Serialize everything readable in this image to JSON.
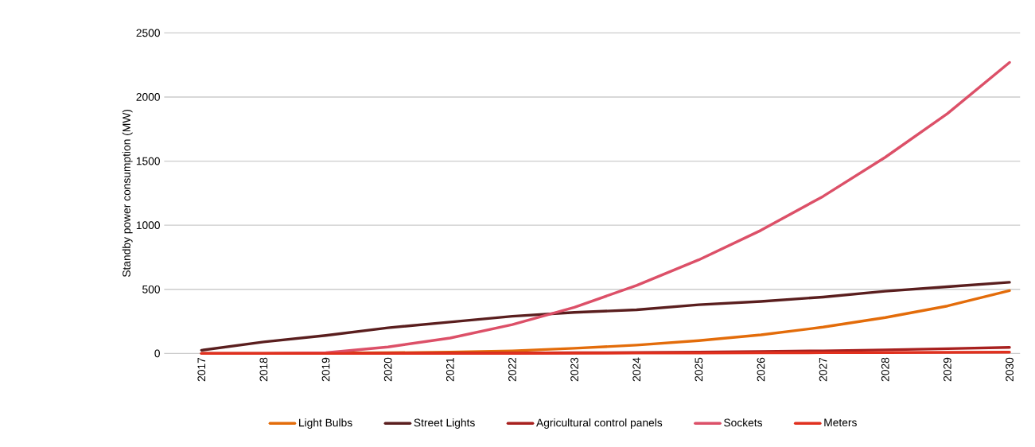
{
  "chart_data": {
    "type": "line",
    "ylabel": "Standby power consumption (MW)",
    "categories": [
      "2017",
      "2018",
      "2019",
      "2020",
      "2021",
      "2022",
      "2023",
      "2024",
      "2025",
      "2026",
      "2027",
      "2028",
      "2029",
      "2030"
    ],
    "series": [
      {
        "name": "Light Bulbs",
        "color": "#e36c0a",
        "values": [
          0,
          0,
          2,
          5,
          10,
          20,
          40,
          65,
          100,
          145,
          205,
          280,
          370,
          490
        ]
      },
      {
        "name": "Street Lights",
        "color": "#5a1e1e",
        "values": [
          25,
          90,
          140,
          200,
          245,
          290,
          320,
          340,
          380,
          405,
          440,
          485,
          520,
          555
        ]
      },
      {
        "name": "Agricultural control panels",
        "color": "#a8201e",
        "values": [
          0,
          0,
          0,
          1,
          2,
          3,
          5,
          7,
          10,
          15,
          20,
          28,
          37,
          47
        ]
      },
      {
        "name": "Sockets",
        "color": "#dc5068",
        "values": [
          0,
          0,
          5,
          50,
          120,
          225,
          360,
          530,
          730,
          960,
          1225,
          1530,
          1870,
          2270
        ]
      },
      {
        "name": "Meters",
        "color": "#e0301e",
        "values": [
          0,
          0,
          0,
          0,
          1,
          1,
          2,
          3,
          4,
          5,
          6,
          7,
          8,
          10
        ]
      }
    ],
    "ylim": [
      0,
      2500
    ],
    "yticks": [
      0,
      500,
      1000,
      1500,
      2000,
      2500
    ],
    "grid": "y",
    "legend": "bottom",
    "marker": "none",
    "line_style": "solid"
  }
}
